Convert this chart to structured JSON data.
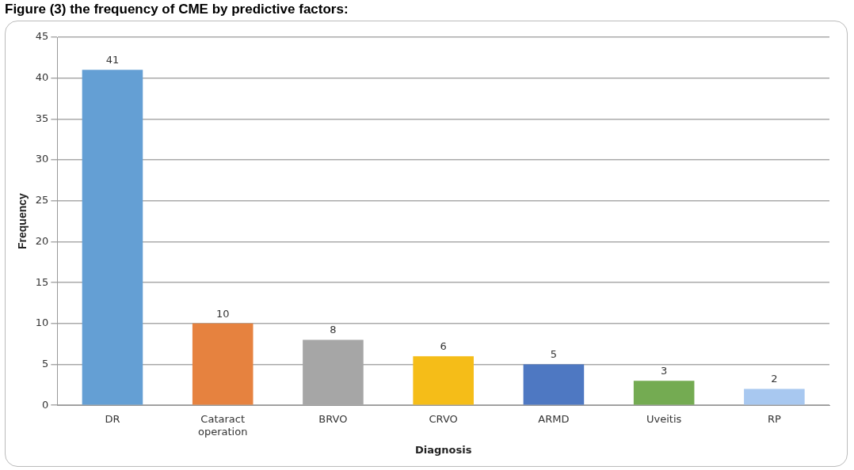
{
  "chart_data": {
    "type": "bar",
    "title": "Figure (3) the frequency of CME by predictive factors:",
    "xlabel": "Diagnosis",
    "ylabel": "Frequency",
    "categories": [
      "DR",
      "Cataract operation",
      "BRVO",
      "CRVO",
      "ARMD",
      "Uveitis",
      "RP"
    ],
    "values": [
      41,
      10,
      8,
      6,
      5,
      3,
      2
    ],
    "colors": [
      "#649fd4",
      "#e6823f",
      "#a6a6a6",
      "#f5bd18",
      "#4e78c2",
      "#74ab52",
      "#a8c8f0"
    ],
    "ylim": [
      0,
      45
    ],
    "yticks": [
      0,
      5,
      10,
      15,
      20,
      25,
      30,
      35,
      40,
      45
    ],
    "grid": "y",
    "data_labels": true,
    "legend": false
  }
}
